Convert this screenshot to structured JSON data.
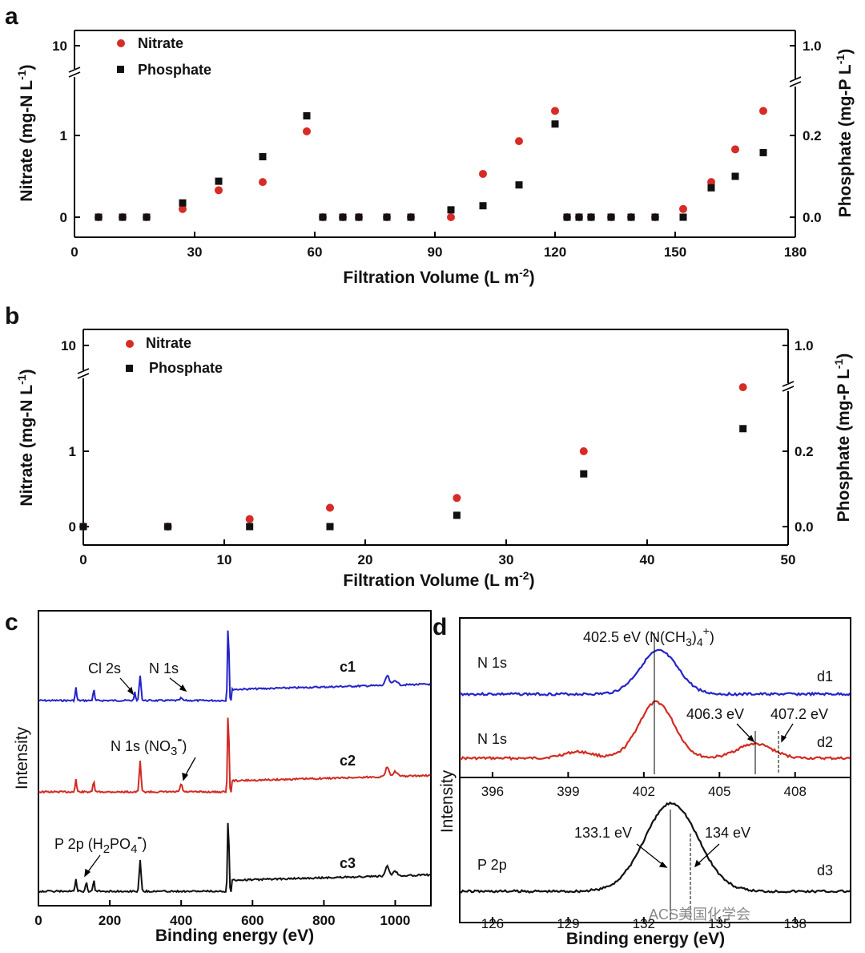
{
  "figure_labels": {
    "a": "a",
    "b": "b",
    "c": "c",
    "d": "d"
  },
  "colors": {
    "nitrate": "#d62b27",
    "phosphate": "#111111",
    "c1": "#2424c9",
    "c2": "#d12b22",
    "c3": "#111111"
  },
  "chart_data": [
    {
      "panel": "a",
      "type": "scatter",
      "xlabel": "Filtration Volume (L m",
      "xlabel_sup": "-2",
      "xlabel_end": ")",
      "ylabel_left": "Nitrate (mg-N L",
      "ylabel_left_sup": "-1",
      "ylabel_left_end": ")",
      "ylabel_right": "Phosphate (mg-P L",
      "ylabel_right_sup": "-1",
      "ylabel_right_end": ")",
      "xlim": [
        0,
        180
      ],
      "x_ticks": [
        "0",
        "30",
        "60",
        "90",
        "120",
        "150",
        "180"
      ],
      "y_left_ticks": [
        "0",
        "1",
        "10"
      ],
      "y_right_ticks": [
        "0.0",
        "0.2",
        "1.0"
      ],
      "broken_axis": true,
      "legend": {
        "position": "top-left",
        "entries": [
          "Nitrate",
          "Phosphate"
        ]
      },
      "series": [
        {
          "name": "Nitrate",
          "marker": "circle",
          "x": [
            6,
            12,
            18,
            27,
            36,
            47,
            58,
            62,
            67,
            71,
            78,
            84,
            94,
            102,
            111,
            120,
            123,
            126,
            129,
            134,
            139,
            145,
            152,
            159,
            165,
            172
          ],
          "y": [
            0,
            0,
            0,
            0.1,
            0.33,
            0.43,
            1.05,
            0,
            0,
            0,
            0,
            0,
            0,
            0.53,
            0.93,
            1.3,
            0,
            0,
            0,
            0,
            0,
            0,
            0.1,
            0.43,
            0.83,
            1.3
          ]
        },
        {
          "name": "Phosphate",
          "marker": "square",
          "x": [
            6,
            12,
            18,
            27,
            36,
            47,
            58,
            62,
            67,
            71,
            78,
            84,
            94,
            102,
            111,
            120,
            123,
            126,
            129,
            134,
            139,
            145,
            152,
            159,
            165,
            172
          ],
          "y": [
            0,
            0,
            0,
            0.035,
            0.088,
            0.148,
            0.248,
            0,
            0,
            0,
            0,
            0,
            0.018,
            0.028,
            0.079,
            0.228,
            0,
            0,
            0,
            0,
            0,
            0,
            0,
            0.072,
            0.1,
            0.158
          ]
        }
      ]
    },
    {
      "panel": "b",
      "type": "scatter",
      "xlabel": "Filtration Volume (L m",
      "xlabel_sup": "-2",
      "xlabel_end": ")",
      "ylabel_left": "Nitrate (mg-N L",
      "ylabel_left_sup": "-1",
      "ylabel_left_end": ")",
      "ylabel_right": "Phosphate (mg-P L",
      "ylabel_right_sup": "-1",
      "ylabel_right_end": ")",
      "xlim": [
        0,
        50
      ],
      "x_ticks": [
        "0",
        "10",
        "20",
        "30",
        "40",
        "50"
      ],
      "y_left_ticks": [
        "0",
        "1",
        "10"
      ],
      "y_right_ticks": [
        "0.0",
        "0.2",
        "1.0"
      ],
      "broken_axis": true,
      "legend": {
        "position": "top-left",
        "entries": [
          "Nitrate",
          "Phosphate"
        ]
      },
      "series": [
        {
          "name": "Nitrate",
          "marker": "circle",
          "x": [
            0,
            6,
            11.8,
            17.5,
            26.5,
            35.5,
            46.8
          ],
          "y": [
            0,
            0,
            0.1,
            0.25,
            0.38,
            1.0,
            1.85
          ]
        },
        {
          "name": "Phosphate",
          "marker": "square",
          "x": [
            0,
            6,
            11.8,
            17.5,
            26.5,
            35.5,
            46.8
          ],
          "y": [
            0,
            0,
            0,
            0,
            0.03,
            0.14,
            0.26
          ]
        }
      ]
    },
    {
      "panel": "c",
      "type": "line",
      "xlabel": "Binding energy (eV)",
      "ylabel": "Intensity",
      "xlim": [
        0,
        1100
      ],
      "x_ticks": [
        "0",
        "200",
        "400",
        "600",
        "800",
        "1000"
      ],
      "series": [
        {
          "name": "c1",
          "label": "c1",
          "color": "#2424c9"
        },
        {
          "name": "c2",
          "label": "c2",
          "color": "#d12b22"
        },
        {
          "name": "c3",
          "label": "c3",
          "color": "#111111"
        }
      ],
      "annotations": [
        "Cl 2s",
        "N 1s",
        "N 1s (NO",
        "3",
        "-",
        ")",
        "P 2p (H",
        "2",
        "PO",
        "4",
        "-",
        ")"
      ]
    },
    {
      "panel": "d",
      "type": "line",
      "xlabel": "Binding energy (eV)",
      "ylabel": "Intensity",
      "top_x_ticks": [
        "396",
        "399",
        "402",
        "405",
        "408"
      ],
      "bottom_x_ticks": [
        "126",
        "129",
        "132",
        "135",
        "138"
      ],
      "series": [
        {
          "name": "d1",
          "label": "d1",
          "title": "N 1s",
          "peak_eV": 402.5,
          "color": "#2424c9"
        },
        {
          "name": "d2",
          "label": "d2",
          "title": "N 1s",
          "peaks_eV": [
            402.5,
            406.3
          ],
          "color": "#d12b22"
        },
        {
          "name": "d3",
          "label": "d3",
          "title": "P 2p",
          "peak_eV": 133.1,
          "color": "#111111"
        }
      ],
      "annotations": [
        "402.5 eV (N(CH",
        "3",
        ")",
        "4",
        "+",
        ")",
        "406.3 eV",
        "407.2 eV",
        "133.1 eV",
        "134 eV"
      ]
    }
  ],
  "watermark": "ACS美国化学会"
}
